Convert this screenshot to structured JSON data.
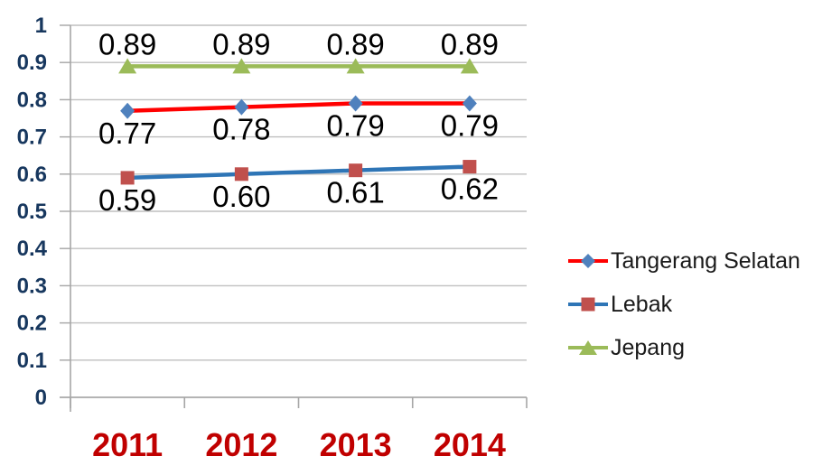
{
  "chart_data": {
    "type": "line",
    "categories": [
      "2011",
      "2012",
      "2013",
      "2014"
    ],
    "series": [
      {
        "name": "Tangerang Selatan",
        "values": [
          0.77,
          0.78,
          0.79,
          0.79
        ],
        "labels": [
          "0.77",
          "0.78",
          "0.79",
          "0.79"
        ],
        "line_color": "#FF0000",
        "marker": "diamond",
        "marker_color": "#4F81BD",
        "label_position": "below"
      },
      {
        "name": "Lebak",
        "values": [
          0.59,
          0.6,
          0.61,
          0.62
        ],
        "labels": [
          "0.59",
          "0.60",
          "0.61",
          "0.62"
        ],
        "line_color": "#2E75B6",
        "marker": "square",
        "marker_color": "#C0504D",
        "label_position": "below"
      },
      {
        "name": "Jepang",
        "values": [
          0.89,
          0.89,
          0.89,
          0.89
        ],
        "labels": [
          "0.89",
          "0.89",
          "0.89",
          "0.89"
        ],
        "line_color": "#9BBB59",
        "marker": "triangle",
        "marker_color": "#9BBB59",
        "label_position": "above"
      }
    ],
    "xlabel": "",
    "ylabel": "",
    "ylim": [
      0,
      1
    ],
    "y_ticks": [
      0,
      0.1,
      0.2,
      0.3,
      0.4,
      0.5,
      0.6,
      0.7,
      0.8,
      0.9,
      1
    ],
    "y_tick_labels": [
      "0",
      "0.1",
      "0.2",
      "0.3",
      "0.4",
      "0.5",
      "0.6",
      "0.7",
      "0.8",
      "0.9",
      "1"
    ],
    "grid": "horizontal",
    "legend_position": "right",
    "colors": {
      "background": "#FFFFFF",
      "grid": "#BFBFBF",
      "axis": "#A6A6A6",
      "y_tick_label": "#17375E",
      "x_tick_label": "#C00000",
      "data_label": "#000000",
      "legend_text": "#1A1A1A"
    }
  }
}
